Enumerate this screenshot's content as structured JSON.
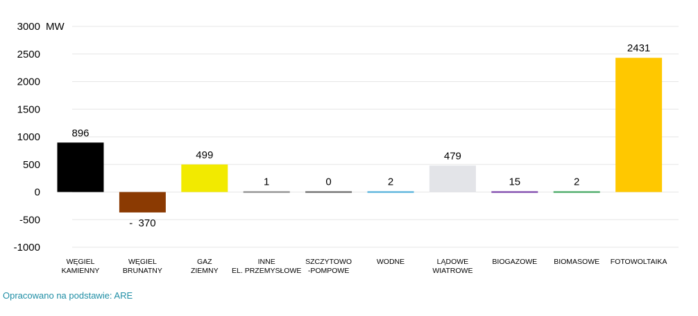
{
  "chart_data": {
    "type": "bar",
    "unit_label": "MW",
    "ylim": [
      -1000,
      3000
    ],
    "yticks": [
      -1000,
      -500,
      0,
      500,
      1000,
      1500,
      2000,
      2500,
      3000
    ],
    "grid": true,
    "categories": [
      [
        "WĘGIEL",
        "KAMIENNY"
      ],
      [
        "WĘGIEL",
        "BRUNATNY"
      ],
      [
        "GAZ",
        "ZIEMNY"
      ],
      [
        "INNE",
        "EL. PRZEMYSŁOWE"
      ],
      [
        "SZCZYTOWO",
        "-POMPOWE"
      ],
      [
        "WODNE"
      ],
      [
        "LĄDOWE",
        "WIATROWE"
      ],
      [
        "BIOGAZOWE"
      ],
      [
        "BIOMASOWE"
      ],
      [
        "FOTOWOLTAIKA"
      ]
    ],
    "values": [
      896,
      -370,
      499,
      1,
      0,
      2,
      479,
      15,
      2,
      2431
    ],
    "value_labels": [
      "896",
      "-  370",
      "499",
      "1",
      "0",
      "2",
      "479",
      "15",
      "2",
      "2431"
    ],
    "colors": [
      "#000000",
      "#8b3a02",
      "#f2ea00",
      "#808080",
      "#5a5a5a",
      "#3fa7d6",
      "#e3e4e8",
      "#6d2fa0",
      "#2e9e4f",
      "#ffc800"
    ]
  },
  "source_note": "Opracowano na podstawie: ARE"
}
